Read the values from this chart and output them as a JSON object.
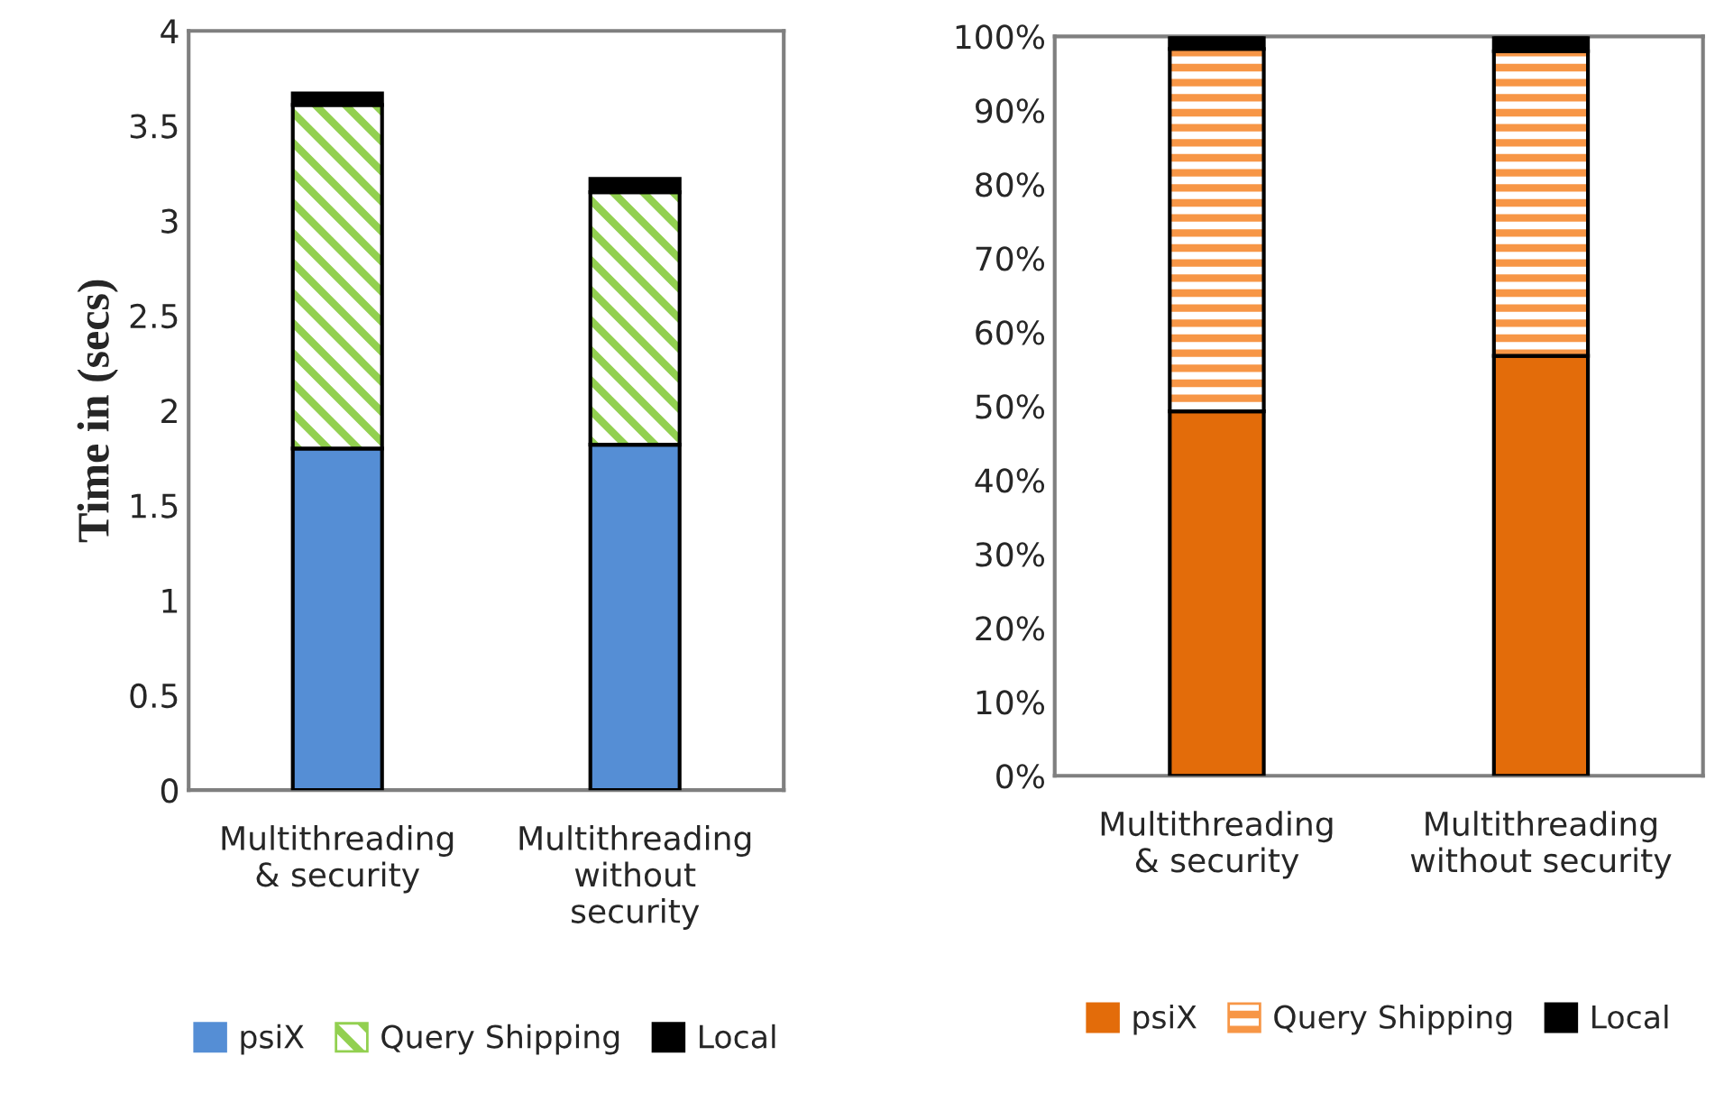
{
  "chart_data": [
    {
      "type": "bar",
      "stacked": true,
      "ylabel": "Time in (secs)",
      "categories": [
        "Multithreading\n& security",
        "Multithreading\nwithout\nsecurity"
      ],
      "series": [
        {
          "name": "psiX",
          "color": "#558ed5",
          "values": [
            1.8,
            1.82
          ]
        },
        {
          "name": "Query Shipping",
          "color": "#92d050",
          "values": [
            1.81,
            1.33
          ]
        },
        {
          "name": "Local",
          "color": "#000000",
          "values": [
            0.06,
            0.07
          ]
        }
      ],
      "ylim": [
        0,
        4
      ],
      "yticks": [
        0,
        0.5,
        1,
        1.5,
        2,
        2.5,
        3,
        3.5,
        4
      ],
      "grid": false,
      "legend": "bottom"
    },
    {
      "type": "bar",
      "stacked": true,
      "categories": [
        "Multithreading\n& security",
        "Multithreading\nwithout security"
      ],
      "series": [
        {
          "name": "psiX",
          "color": "#e36c0a",
          "values": [
            49.3,
            56.8
          ]
        },
        {
          "name": "Query Shipping",
          "color": "#f79646",
          "values": [
            49.0,
            41.2
          ]
        },
        {
          "name": "Local",
          "color": "#000000",
          "values": [
            1.7,
            2.0
          ]
        }
      ],
      "ylim": [
        0,
        100
      ],
      "yticks": [
        {
          "value": 0,
          "label": "0%"
        },
        {
          "value": 10,
          "label": "10%"
        },
        {
          "value": 20,
          "label": "20%"
        },
        {
          "value": 30,
          "label": "30%"
        },
        {
          "value": 40,
          "label": "40%"
        },
        {
          "value": 50,
          "label": "50%"
        },
        {
          "value": 60,
          "label": "60%"
        },
        {
          "value": 70,
          "label": "70%"
        },
        {
          "value": 80,
          "label": "80%"
        },
        {
          "value": 90,
          "label": "90%"
        },
        {
          "value": 100,
          "label": "100%"
        }
      ],
      "grid": false,
      "legend": "bottom"
    }
  ]
}
